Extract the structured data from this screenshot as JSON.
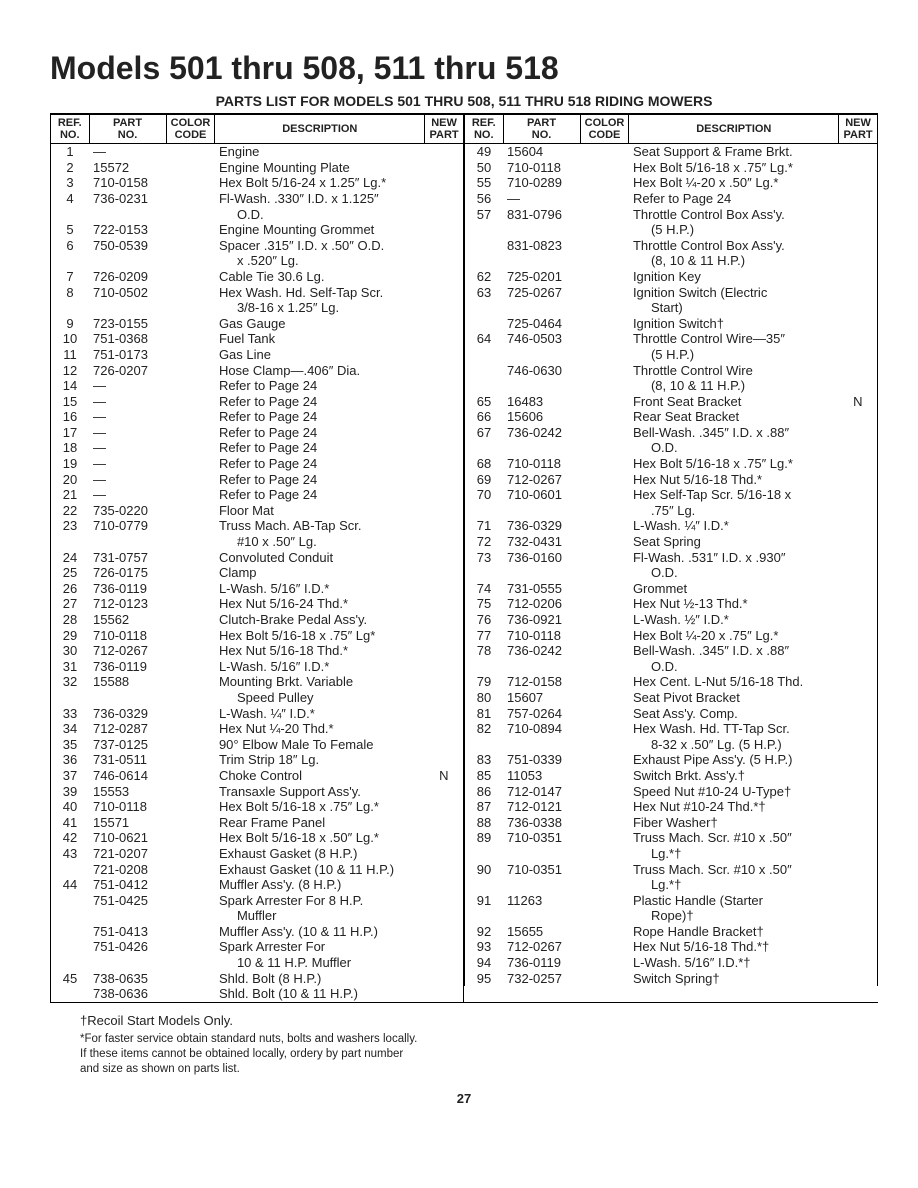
{
  "title": "Models 501 thru 508, 511 thru 518",
  "subtitle": "PARTS LIST FOR MODELS 501 THRU 508, 511 THRU 518 RIDING MOWERS",
  "headers": {
    "ref": "REF.\nNO.",
    "part": "PART\nNO.",
    "color": "COLOR\nCODE",
    "desc": "DESCRIPTION",
    "newp": "NEW\nPART"
  },
  "left_rows": [
    {
      "ref": "1",
      "part": "—",
      "desc": "Engine"
    },
    {
      "ref": "2",
      "part": "15572",
      "desc": "Engine Mounting Plate"
    },
    {
      "ref": "3",
      "part": "710-0158",
      "desc": "Hex Bolt 5/16-24 x 1.25″ Lg.*"
    },
    {
      "ref": "4",
      "part": "736-0231",
      "desc": "Fl-Wash. .330″ I.D. x 1.125″"
    },
    {
      "ref": "",
      "part": "",
      "desc": "<span class=\"indent\">O.D.</span>"
    },
    {
      "ref": "5",
      "part": "722-0153",
      "desc": "Engine Mounting Grommet"
    },
    {
      "ref": "6",
      "part": "750-0539",
      "desc": "Spacer .315″ I.D. x .50″ O.D."
    },
    {
      "ref": "",
      "part": "",
      "desc": "<span class=\"indent\">x .520″ Lg.</span>"
    },
    {
      "ref": "7",
      "part": "726-0209",
      "desc": "Cable Tie 30.6 Lg."
    },
    {
      "ref": "8",
      "part": "710-0502",
      "desc": "Hex Wash. Hd. Self-Tap Scr."
    },
    {
      "ref": "",
      "part": "",
      "desc": "<span class=\"indent\">3/8-16 x 1.25″ Lg.</span>"
    },
    {
      "ref": "9",
      "part": "723-0155",
      "desc": "Gas Gauge"
    },
    {
      "ref": "10",
      "part": "751-0368",
      "desc": "Fuel Tank"
    },
    {
      "ref": "11",
      "part": "751-0173",
      "desc": "Gas Line"
    },
    {
      "ref": "12",
      "part": "726-0207",
      "desc": "Hose Clamp—.406″ Dia."
    },
    {
      "ref": "14",
      "part": "—",
      "desc": "Refer to Page 24"
    },
    {
      "ref": "15",
      "part": "—",
      "desc": "Refer to Page 24"
    },
    {
      "ref": "16",
      "part": "—",
      "desc": "Refer to Page 24"
    },
    {
      "ref": "17",
      "part": "—",
      "desc": "Refer to Page 24"
    },
    {
      "ref": "18",
      "part": "—",
      "desc": "Refer to Page 24"
    },
    {
      "ref": "19",
      "part": "—",
      "desc": "Refer to Page 24"
    },
    {
      "ref": "20",
      "part": "—",
      "desc": "Refer to Page 24"
    },
    {
      "ref": "21",
      "part": "—",
      "desc": "Refer to Page 24"
    },
    {
      "ref": "22",
      "part": "735-0220",
      "desc": "Floor Mat"
    },
    {
      "ref": "23",
      "part": "710-0779",
      "desc": "Truss Mach. AB-Tap Scr."
    },
    {
      "ref": "",
      "part": "",
      "desc": "<span class=\"indent\">#10 x .50″ Lg.</span>"
    },
    {
      "ref": "24",
      "part": "731-0757",
      "desc": "Convoluted Conduit"
    },
    {
      "ref": "25",
      "part": "726-0175",
      "desc": "Clamp"
    },
    {
      "ref": "26",
      "part": "736-0119",
      "desc": "L-Wash. 5/16″ I.D.*"
    },
    {
      "ref": "27",
      "part": "712-0123",
      "desc": "Hex Nut 5/16-24 Thd.*"
    },
    {
      "ref": "28",
      "part": "15562",
      "desc": "Clutch-Brake Pedal Ass'y."
    },
    {
      "ref": "29",
      "part": "710-0118",
      "desc": "Hex Bolt 5/16-18 x .75″ Lg*"
    },
    {
      "ref": "30",
      "part": "712-0267",
      "desc": "Hex Nut 5/16-18 Thd.*"
    },
    {
      "ref": "31",
      "part": "736-0119",
      "desc": "L-Wash. 5/16″ I.D.*"
    },
    {
      "ref": "32",
      "part": "15588",
      "desc": "Mounting Brkt. Variable"
    },
    {
      "ref": "",
      "part": "",
      "desc": "<span class=\"indent\">Speed Pulley</span>"
    },
    {
      "ref": "33",
      "part": "736-0329",
      "desc": "L-Wash. ¼″ I.D.*"
    },
    {
      "ref": "34",
      "part": "712-0287",
      "desc": "Hex Nut ¼-20 Thd.*"
    },
    {
      "ref": "35",
      "part": "737-0125",
      "desc": "90° Elbow Male To Female"
    },
    {
      "ref": "36",
      "part": "731-0511",
      "desc": "Trim Strip 18″ Lg."
    },
    {
      "ref": "37",
      "part": "746-0614",
      "desc": "Choke Control",
      "newp": "N"
    },
    {
      "ref": "39",
      "part": "15553",
      "desc": "Transaxle Support Ass'y."
    },
    {
      "ref": "40",
      "part": "710-0118",
      "desc": "Hex Bolt 5/16-18 x .75″ Lg.*"
    },
    {
      "ref": "41",
      "part": "15571",
      "desc": "Rear Frame Panel"
    },
    {
      "ref": "42",
      "part": "710-0621",
      "desc": "Hex Bolt 5/16-18 x .50″ Lg.*"
    },
    {
      "ref": "43",
      "part": "721-0207",
      "desc": "Exhaust Gasket (8 H.P.)"
    },
    {
      "ref": "",
      "part": "721-0208",
      "desc": "Exhaust Gasket (10 & 11 H.P.)"
    },
    {
      "ref": "44",
      "part": "751-0412",
      "desc": "Muffler Ass'y. (8 H.P.)"
    },
    {
      "ref": "",
      "part": "751-0425",
      "desc": "Spark Arrester For 8 H.P."
    },
    {
      "ref": "",
      "part": "",
      "desc": "<span class=\"indent\">Muffler</span>"
    },
    {
      "ref": "",
      "part": "751-0413",
      "desc": "Muffler Ass'y. (10 & 11 H.P.)"
    },
    {
      "ref": "",
      "part": "751-0426",
      "desc": "Spark Arrester For"
    },
    {
      "ref": "",
      "part": "",
      "desc": "<span class=\"indent\">10 & 11 H.P. Muffler</span>"
    },
    {
      "ref": "45",
      "part": "738-0635",
      "desc": "Shld. Bolt (8 H.P.)"
    },
    {
      "ref": "",
      "part": "738-0636",
      "desc": "Shld. Bolt (10 & 11 H.P.)"
    }
  ],
  "right_rows": [
    {
      "ref": "49",
      "part": "15604",
      "desc": "Seat Support & Frame Brkt."
    },
    {
      "ref": "50",
      "part": "710-0118",
      "desc": "Hex Bolt 5/16-18 x .75″ Lg.*"
    },
    {
      "ref": "55",
      "part": "710-0289",
      "desc": "Hex Bolt ¼-20 x .50″ Lg.*"
    },
    {
      "ref": "56",
      "part": "—",
      "desc": "Refer to Page 24"
    },
    {
      "ref": "57",
      "part": "831-0796",
      "desc": "Throttle Control Box Ass'y."
    },
    {
      "ref": "",
      "part": "",
      "desc": "<span class=\"indent\">(5 H.P.)</span>"
    },
    {
      "ref": "",
      "part": "831-0823",
      "desc": "Throttle Control Box Ass'y."
    },
    {
      "ref": "",
      "part": "",
      "desc": "<span class=\"indent\">(8, 10 & 11 H.P.)</span>"
    },
    {
      "ref": "62",
      "part": "725-0201",
      "desc": "Ignition Key"
    },
    {
      "ref": "63",
      "part": "725-0267",
      "desc": "Ignition Switch (Electric"
    },
    {
      "ref": "",
      "part": "",
      "desc": "<span class=\"indent\">Start)</span>"
    },
    {
      "ref": "",
      "part": "725-0464",
      "desc": "Ignition Switch†"
    },
    {
      "ref": "64",
      "part": "746-0503",
      "desc": "Throttle Control Wire—35″"
    },
    {
      "ref": "",
      "part": "",
      "desc": "<span class=\"indent\">(5 H.P.)</span>"
    },
    {
      "ref": "",
      "part": "746-0630",
      "desc": "Throttle Control Wire"
    },
    {
      "ref": "",
      "part": "",
      "desc": "<span class=\"indent\">(8, 10 & 11 H.P.)</span>"
    },
    {
      "ref": "65",
      "part": "16483",
      "desc": "Front Seat Bracket",
      "newp": "N"
    },
    {
      "ref": "66",
      "part": "15606",
      "desc": "Rear Seat Bracket"
    },
    {
      "ref": "67",
      "part": "736-0242",
      "desc": "Bell-Wash. .345″ I.D. x .88″"
    },
    {
      "ref": "",
      "part": "",
      "desc": "<span class=\"indent\">O.D.</span>"
    },
    {
      "ref": "68",
      "part": "710-0118",
      "desc": "Hex Bolt 5/16-18 x .75″ Lg.*"
    },
    {
      "ref": "69",
      "part": "712-0267",
      "desc": "Hex Nut 5/16-18 Thd.*"
    },
    {
      "ref": "70",
      "part": "710-0601",
      "desc": "Hex Self-Tap Scr. 5/16-18 x"
    },
    {
      "ref": "",
      "part": "",
      "desc": "<span class=\"indent\">.75″ Lg.</span>"
    },
    {
      "ref": "71",
      "part": "736-0329",
      "desc": "L-Wash. ¼″ I.D.*"
    },
    {
      "ref": "72",
      "part": "732-0431",
      "desc": "Seat Spring"
    },
    {
      "ref": "73",
      "part": "736-0160",
      "desc": "Fl-Wash. .531″ I.D. x .930″"
    },
    {
      "ref": "",
      "part": "",
      "desc": "<span class=\"indent\">O.D.</span>"
    },
    {
      "ref": "74",
      "part": "731-0555",
      "desc": "Grommet"
    },
    {
      "ref": "75",
      "part": "712-0206",
      "desc": "Hex Nut ½-13 Thd.*"
    },
    {
      "ref": "76",
      "part": "736-0921",
      "desc": "L-Wash. ½″ I.D.*"
    },
    {
      "ref": "77",
      "part": "710-0118",
      "desc": "Hex Bolt ¼-20 x .75″ Lg.*"
    },
    {
      "ref": "78",
      "part": "736-0242",
      "desc": "Bell-Wash. .345″ I.D. x .88″"
    },
    {
      "ref": "",
      "part": "",
      "desc": "<span class=\"indent\">O.D.</span>"
    },
    {
      "ref": "79",
      "part": "712-0158",
      "desc": "Hex Cent. L-Nut 5/16-18 Thd."
    },
    {
      "ref": "80",
      "part": "15607",
      "desc": "Seat Pivot Bracket"
    },
    {
      "ref": "81",
      "part": "757-0264",
      "desc": "Seat Ass'y. Comp."
    },
    {
      "ref": "82",
      "part": "710-0894",
      "desc": "Hex Wash. Hd. TT-Tap Scr."
    },
    {
      "ref": "",
      "part": "",
      "desc": "<span class=\"indent\">8-32 x .50″ Lg. (5 H.P.)</span>"
    },
    {
      "ref": "83",
      "part": "751-0339",
      "desc": "Exhaust Pipe Ass'y. (5 H.P.)"
    },
    {
      "ref": "85",
      "part": "11053",
      "desc": "Switch Brkt. Ass'y.†"
    },
    {
      "ref": "86",
      "part": "712-0147",
      "desc": "Speed Nut #10-24 U-Type†"
    },
    {
      "ref": "87",
      "part": "712-0121",
      "desc": "Hex Nut #10-24 Thd.*†"
    },
    {
      "ref": "88",
      "part": "736-0338",
      "desc": "Fiber Washer†"
    },
    {
      "ref": "89",
      "part": "710-0351",
      "desc": "Truss Mach. Scr. #10 x .50″"
    },
    {
      "ref": "",
      "part": "",
      "desc": "<span class=\"indent\">Lg.*†</span>"
    },
    {
      "ref": "90",
      "part": "710-0351",
      "desc": "Truss Mach. Scr. #10 x .50″"
    },
    {
      "ref": "",
      "part": "",
      "desc": "<span class=\"indent\">Lg.*†</span>"
    },
    {
      "ref": "91",
      "part": "11263",
      "desc": "Plastic Handle (Starter"
    },
    {
      "ref": "",
      "part": "",
      "desc": "<span class=\"indent\">Rope)†</span>"
    },
    {
      "ref": "92",
      "part": "15655",
      "desc": "Rope Handle Bracket†"
    },
    {
      "ref": "93",
      "part": "712-0267",
      "desc": "Hex Nut 5/16-18 Thd.*†"
    },
    {
      "ref": "94",
      "part": "736-0119",
      "desc": "L-Wash. 5/16″ I.D.*†"
    },
    {
      "ref": "95",
      "part": "732-0257",
      "desc": "Switch Spring†"
    }
  ],
  "footnote1": "†Recoil Start Models Only.",
  "footnote2": "*For faster service obtain standard nuts, bolts and washers locally.",
  "footnote3": "If these items cannot be obtained locally, ordery by part number",
  "footnote4": "and size as shown on parts list.",
  "page": "27"
}
